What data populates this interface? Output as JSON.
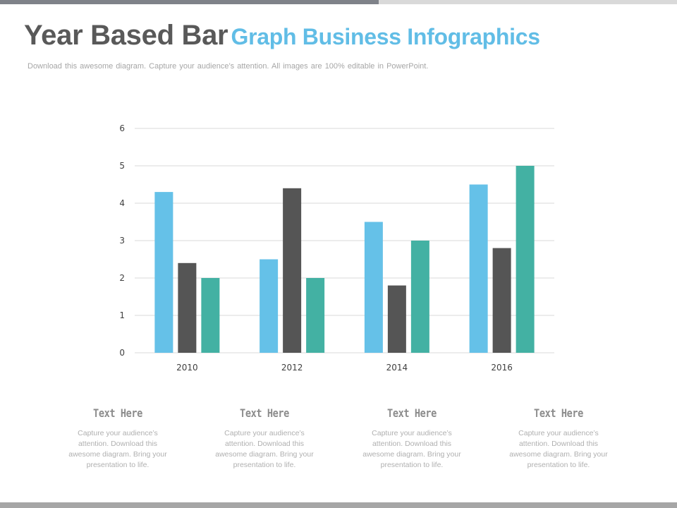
{
  "header": {
    "title_dark": "Year Based Bar",
    "title_light": "Graph Business Infographics",
    "subtitle": "Download  this  awesome  diagram.  Capture  your  audience’s  attention.  All images  are  100%  editable  in  PowerPoint."
  },
  "colors": {
    "series_a": "#65c1e8",
    "series_b": "#555555",
    "series_c": "#43b1a3",
    "grid": "#d9d9d9"
  },
  "chart_data": {
    "type": "bar",
    "categories": [
      "2010",
      "2012",
      "2014",
      "2016"
    ],
    "series": [
      {
        "values": [
          4.3,
          2.5,
          3.5,
          4.5
        ]
      },
      {
        "values": [
          2.4,
          4.4,
          1.8,
          2.8
        ]
      },
      {
        "values": [
          2.0,
          2.0,
          3.0,
          5.0
        ]
      }
    ],
    "yticks": [
      "0",
      "1",
      "2",
      "3",
      "4",
      "5",
      "6"
    ],
    "ylim": [
      0,
      6
    ],
    "grid": true,
    "legend": "none"
  },
  "captions": [
    {
      "title": "Text Here",
      "body": "Capture your audience’s attention. Download this awesome diagram. Bring your presentation to life."
    },
    {
      "title": "Text Here",
      "body": "Capture your audience’s attention. Download this awesome diagram. Bring your presentation to life."
    },
    {
      "title": "Text Here",
      "body": "Capture your audience’s attention. Download this awesome diagram. Bring your presentation to life."
    },
    {
      "title": "Text Here",
      "body": "Capture your audience’s attention. Download this awesome diagram. Bring your presentation to life."
    }
  ]
}
